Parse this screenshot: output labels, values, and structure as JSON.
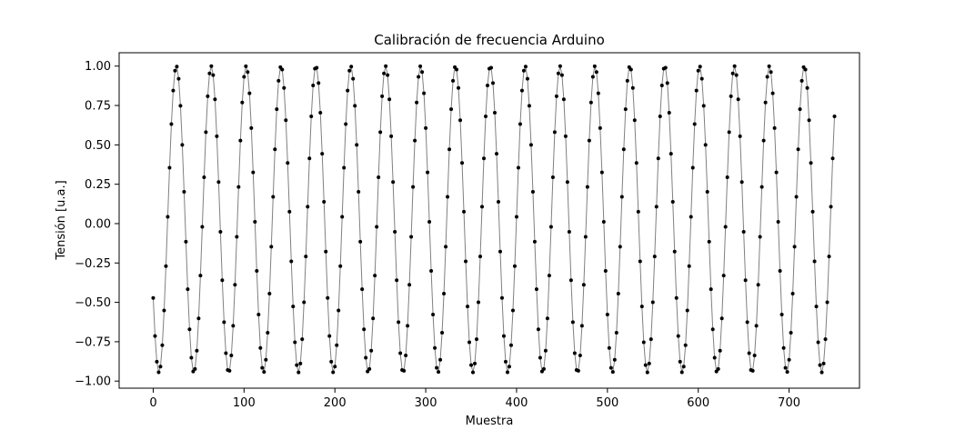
{
  "chart_data": {
    "type": "line",
    "title": "Calibración de frecuencia Arduino",
    "xlabel": "Muestra",
    "ylabel": "Tensión [u.a.]",
    "xlim": [
      -37.5,
      777.5
    ],
    "ylim": [
      -1.045,
      1.085
    ],
    "xticks": [
      0,
      100,
      200,
      300,
      400,
      500,
      600,
      700
    ],
    "xtick_labels": [
      "0",
      "100",
      "200",
      "300",
      "400",
      "500",
      "600",
      "700"
    ],
    "yticks": [
      -1.0,
      -0.75,
      -0.5,
      -0.25,
      0.0,
      0.25,
      0.5,
      0.75,
      1.0
    ],
    "ytick_labels": [
      "−1.00",
      "−0.75",
      "−0.50",
      "−0.25",
      "0.00",
      "0.25",
      "0.50",
      "0.75",
      "1.00"
    ],
    "grid": false,
    "series": [
      {
        "x_start": 0,
        "x_end": 750,
        "x_step": 2,
        "period": 38.4,
        "first_peak_x": 25.5,
        "max": 1.0,
        "min": -0.945,
        "line_color": "#808080",
        "marker_color": "#000000",
        "marker": "dot"
      }
    ]
  }
}
